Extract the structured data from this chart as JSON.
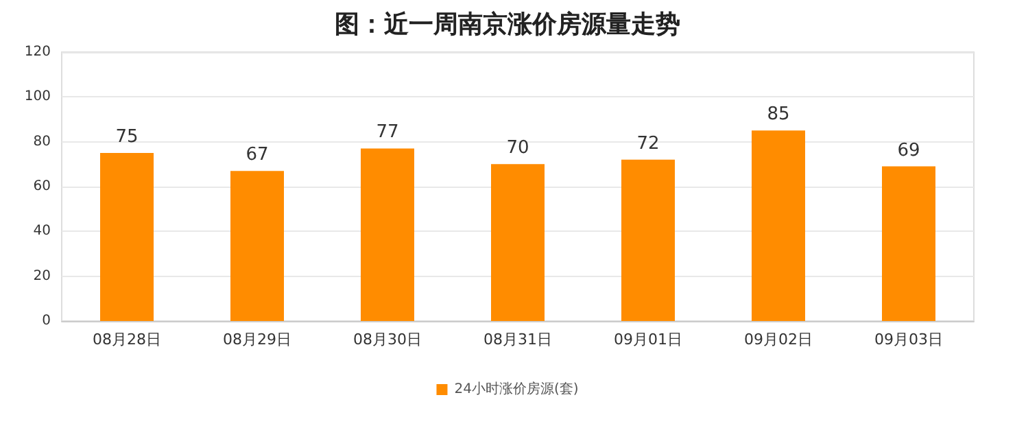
{
  "chart_data": {
    "type": "bar",
    "title": "图：近一周南京涨价房源量走势",
    "categories": [
      "08月28日",
      "08月29日",
      "08月30日",
      "08月31日",
      "09月01日",
      "09月02日",
      "09月03日"
    ],
    "series": [
      {
        "name": "24小时涨价房源(套)",
        "color": "#ff8c00",
        "values": [
          75,
          67,
          77,
          70,
          72,
          85,
          69
        ]
      }
    ],
    "ylim": [
      0,
      120
    ],
    "yticks": [
      0,
      20,
      40,
      60,
      80,
      100,
      120
    ],
    "grid": "y",
    "legend": "bottom",
    "data_labels": true
  }
}
